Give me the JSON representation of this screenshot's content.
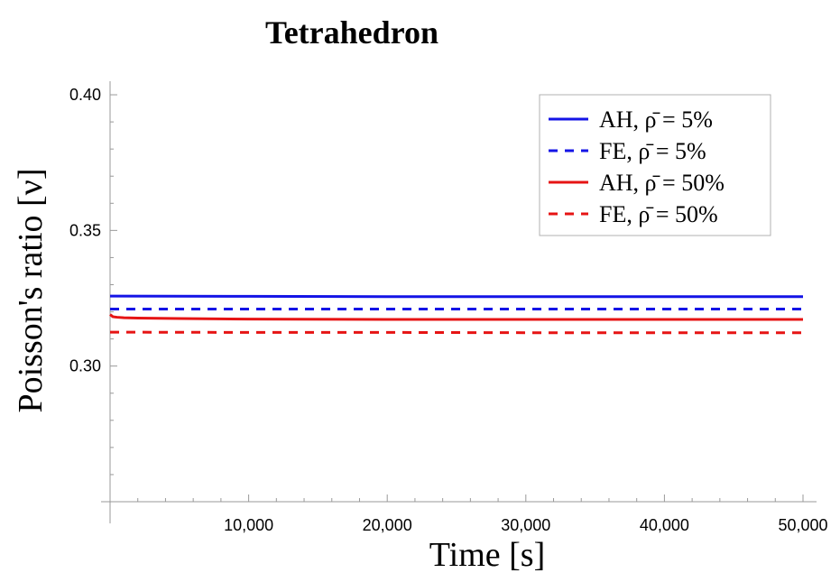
{
  "chart_data": {
    "type": "line",
    "title": "Tetrahedron",
    "xlabel": "Time [s]",
    "ylabel": "Poisson's ratio [ν]",
    "xlim": [
      0,
      50000
    ],
    "ylim": [
      0.25,
      0.405
    ],
    "x_ticks": [
      10000,
      20000,
      30000,
      40000,
      50000
    ],
    "x_tick_labels": [
      "10,000",
      "20,000",
      "30,000",
      "40,000",
      "50,000"
    ],
    "y_ticks": [
      0.3,
      0.35,
      0.4
    ],
    "y_tick_labels": [
      "0.30",
      "0.35",
      "0.40"
    ],
    "grid": false,
    "legend_position": "top-right",
    "series": [
      {
        "name": "AH, ρ̄ = 5%",
        "color": "#1414e6",
        "dash": "solid",
        "x": [
          0,
          10000,
          20000,
          30000,
          40000,
          50000
        ],
        "y": [
          0.3258,
          0.3257,
          0.3256,
          0.3256,
          0.3256,
          0.3256
        ]
      },
      {
        "name": "FE, ρ̄ = 5%",
        "color": "#1414e6",
        "dash": "dashed",
        "x": [
          0,
          10000,
          20000,
          30000,
          40000,
          50000
        ],
        "y": [
          0.321,
          0.321,
          0.321,
          0.321,
          0.321,
          0.321
        ]
      },
      {
        "name": "AH, ρ̄ = 50%",
        "color": "#e61414",
        "dash": "solid",
        "x": [
          0,
          200,
          500,
          1000,
          2000,
          5000,
          10000,
          20000,
          30000,
          40000,
          50000
        ],
        "y": [
          0.319,
          0.3182,
          0.318,
          0.3178,
          0.3177,
          0.3175,
          0.3173,
          0.3172,
          0.3172,
          0.3172,
          0.3172
        ]
      },
      {
        "name": "FE, ρ̄ = 50%",
        "color": "#e61414",
        "dash": "dashed",
        "x": [
          0,
          10000,
          20000,
          30000,
          40000,
          50000
        ],
        "y": [
          0.3125,
          0.3124,
          0.3124,
          0.3123,
          0.3123,
          0.3123
        ]
      }
    ]
  }
}
